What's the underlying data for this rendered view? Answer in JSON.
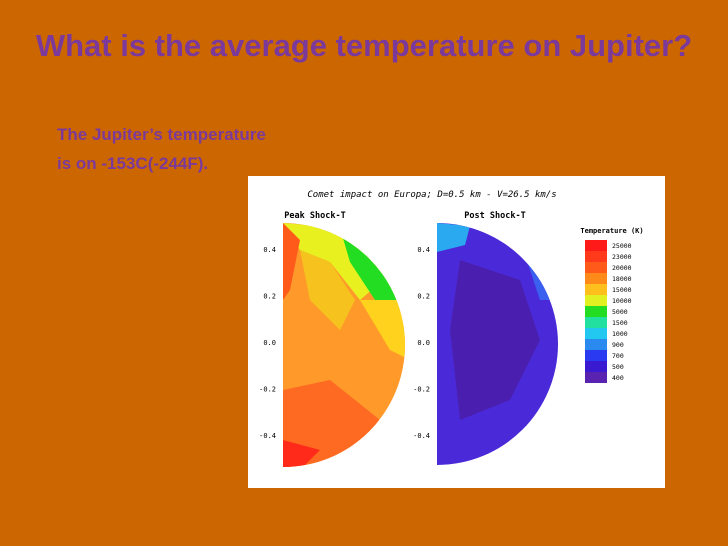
{
  "slide": {
    "title": "What is the average temperature on Jupiter?",
    "body": "The Jupiter’s temperature is on -153C(-244F)."
  },
  "figure": {
    "caption": "Comet impact on Europa; D=0.5 km  -  V=26.5 km/s",
    "panels": [
      {
        "title": "Peak Shock-T"
      },
      {
        "title": "Post Shock-T"
      }
    ],
    "y_ticks": [
      "0.4",
      "0.2",
      "0.0",
      "-0.2",
      "-0.4"
    ],
    "legend": {
      "title": "Temperature (K)",
      "entries": [
        {
          "label": "25000",
          "color": "#ff1a1a"
        },
        {
          "label": "23000",
          "color": "#ff3a1a"
        },
        {
          "label": "20000",
          "color": "#ff5a1a"
        },
        {
          "label": "18000",
          "color": "#ff8a1a"
        },
        {
          "label": "15000",
          "color": "#ffc01e"
        },
        {
          "label": "10000",
          "color": "#e0f020"
        },
        {
          "label": "5000",
          "color": "#22dd22"
        },
        {
          "label": "1500",
          "color": "#22e0a0"
        },
        {
          "label": "1000",
          "color": "#22c8f0"
        },
        {
          "label": "900",
          "color": "#2a8af0"
        },
        {
          "label": "700",
          "color": "#2a3af0"
        },
        {
          "label": "500",
          "color": "#3a1ad0"
        },
        {
          "label": "400",
          "color": "#5a22b0"
        }
      ]
    }
  }
}
